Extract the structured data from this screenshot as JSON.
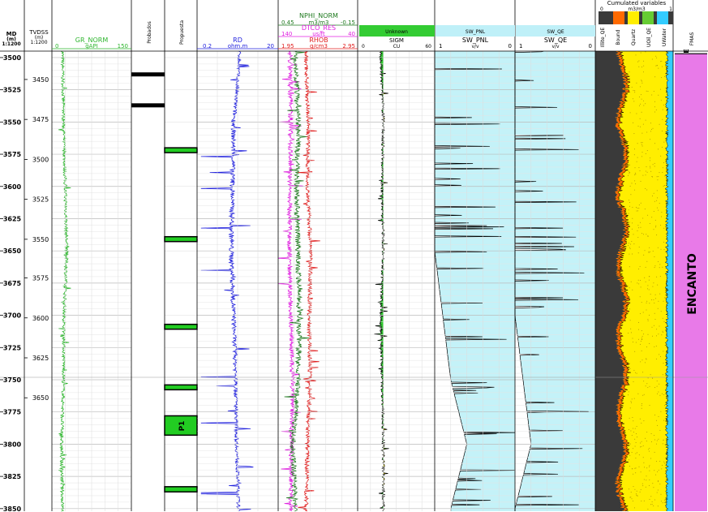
{
  "header": {
    "md_label": "MD",
    "md_unit": "(m)",
    "md_scale": "1:1200",
    "tvd_label": "TVDSS",
    "tvd_unit": "(m)",
    "tvd_scale": "1:1200",
    "cumulated_title": "Cumulated variables",
    "cumulated_unit": "m3/m3",
    "cumulated_min": "0",
    "cumulated_max": "1"
  },
  "tracks": {
    "gr": {
      "name": "GR_NORM",
      "unit": "gAPI",
      "min": "0",
      "max": "150",
      "color": "#2db52d"
    },
    "probados": {
      "name": "Probados"
    },
    "propuesta": {
      "name": "Propuesta"
    },
    "rd": {
      "name": "RD",
      "unit": "ohm.m",
      "min": "0.2",
      "max": "20",
      "color": "#2222dd"
    },
    "nphi": {
      "name": "NPHI_NORM",
      "unit": "m3/m3",
      "min": "0.45",
      "max": "-0.15",
      "color": "#1f7a1f"
    },
    "dtco": {
      "name": "DTCO_RES",
      "unit": "us/ft",
      "min": "140",
      "max": "40",
      "color": "#e020e0"
    },
    "rhob": {
      "name": "RHOB",
      "unit": "g/cm3",
      "min": "1.95",
      "max": "2.95",
      "color": "#e02020"
    },
    "sigm_unknown": {
      "name": "Unknown",
      "color": "#33cc33"
    },
    "sigm": {
      "name": "SIGM",
      "unit": "CU",
      "min": "0",
      "max": "60"
    },
    "sw_pnl": {
      "name": "SW_PNL",
      "unit": "v/v",
      "min": "1",
      "max": "0",
      "header_name": "SW_PNL"
    },
    "sw_qe": {
      "name": "SW_QE",
      "unit": "v/v",
      "min": "1",
      "max": "0",
      "header_name": "SW_QE"
    },
    "litho": {
      "columns": [
        "Illite_QE",
        "Bound",
        "Quartz",
        "UOil_QE",
        "UWater"
      ],
      "colors": [
        "#3a3a3a",
        "#ff6a00",
        "#ffee00",
        "#66cc33",
        "#33ccff"
      ]
    },
    "zones": {
      "name": "FMAS",
      "zone_label": "ENCANTO",
      "zone_top_label": "E",
      "zone_color": "#e87ae8"
    }
  },
  "legend_swatches": [
    "#ff6a00",
    "#ffee00",
    "#66cc33",
    "#33ccff"
  ],
  "propuesta_label": "P1",
  "md_ticks": [
    "3500",
    "3525",
    "3550",
    "3575",
    "3600",
    "3625",
    "3650",
    "3675",
    "3700",
    "3725",
    "3750",
    "3775",
    "3800",
    "3825",
    "3850"
  ],
  "tvd_ticks": [
    "3450",
    "3475",
    "3500",
    "3525",
    "3550",
    "3575",
    "3600",
    "3625",
    "3650"
  ],
  "chart_data": {
    "type": "line",
    "depth_axis": "MD (m)",
    "md_range": [
      3495,
      3852
    ],
    "tvd_ticks_md": [
      3517,
      3548,
      3579,
      3610,
      3641,
      3671,
      3702,
      3733,
      3764
    ],
    "probados_intervals_md": [
      [
        3511.5,
        3513
      ],
      [
        3535.5,
        3537
      ]
    ],
    "propuesta_intervals_md": [
      [
        3570,
        3572
      ],
      [
        3639,
        3641
      ],
      [
        3707,
        3709
      ],
      [
        3754,
        3756
      ],
      [
        3778,
        3793
      ],
      [
        3833,
        3837
      ]
    ],
    "zone": {
      "name": "ENCANTO",
      "top_md": 3497,
      "base_md": 3852
    },
    "series": [
      {
        "name": "GR_NORM",
        "unit": "gAPI",
        "md": [
          3500,
          3550,
          3600,
          3650,
          3700,
          3750,
          3800,
          3850
        ],
        "values": [
          20,
          22,
          25,
          28,
          23,
          22,
          18,
          20
        ]
      },
      {
        "name": "RD",
        "unit": "ohm.m",
        "md": [
          3500,
          3550,
          3600,
          3650,
          3700,
          3750,
          3800,
          3850
        ],
        "values": [
          2.2,
          1.6,
          1.5,
          1.4,
          1.6,
          1.8,
          1.9,
          2.1
        ]
      },
      {
        "name": "NPHI_NORM",
        "unit": "m3/m3",
        "md": [
          3500,
          3550,
          3600,
          3650,
          3700,
          3750,
          3800,
          3850
        ],
        "values": [
          0.32,
          0.3,
          0.31,
          0.3,
          0.29,
          0.3,
          0.34,
          0.32
        ]
      },
      {
        "name": "DTCO_RES",
        "unit": "us/ft",
        "md": [
          3500,
          3550,
          3600,
          3650,
          3700,
          3750,
          3800,
          3850
        ],
        "values": [
          125,
          124,
          125,
          126,
          124,
          122,
          123,
          124
        ]
      },
      {
        "name": "RHOB",
        "unit": "g/cm3",
        "md": [
          3500,
          3550,
          3600,
          3650,
          3700,
          3750,
          3800,
          3850
        ],
        "values": [
          2.3,
          2.33,
          2.32,
          2.36,
          2.34,
          2.35,
          2.32,
          2.3
        ]
      },
      {
        "name": "SIGM",
        "unit": "CU",
        "md": [
          3500,
          3550,
          3600,
          3650,
          3700,
          3750,
          3800,
          3850
        ],
        "values": [
          18,
          20,
          19,
          20,
          18,
          19,
          20,
          20
        ]
      },
      {
        "name": "SW_PNL",
        "unit": "v/v",
        "md": [
          3500,
          3550,
          3600,
          3650,
          3700,
          3750,
          3800,
          3850
        ],
        "values": [
          1.0,
          1.0,
          1.0,
          1.0,
          0.9,
          0.8,
          0.6,
          0.8
        ]
      },
      {
        "name": "SW_QE",
        "unit": "v/v",
        "md": [
          3500,
          3550,
          3600,
          3650,
          3700,
          3750,
          3800,
          3850
        ],
        "values": [
          1.0,
          1.0,
          1.0,
          1.0,
          1.0,
          0.9,
          0.8,
          1.0
        ]
      }
    ]
  }
}
